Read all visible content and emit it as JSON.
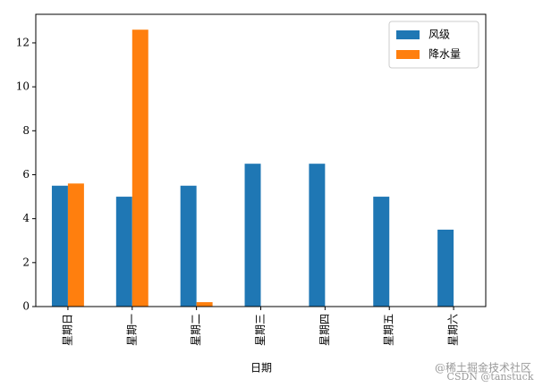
{
  "chart_data": {
    "type": "bar",
    "categories": [
      "星期日",
      "星期一",
      "星期二",
      "星期三",
      "星期四",
      "星期五",
      "星期六"
    ],
    "series": [
      {
        "name": "风级",
        "color": "#1f77b4",
        "values": [
          5.5,
          5,
          5.5,
          6.5,
          6.5,
          5,
          3.5
        ]
      },
      {
        "name": "降水量",
        "color": "#ff7f0e",
        "values": [
          5.6,
          12.6,
          0.2,
          0,
          0,
          0,
          0
        ]
      }
    ],
    "x_label": "日期",
    "ylim": [
      0,
      13.3
    ],
    "yticks": [
      0,
      2,
      4,
      6,
      8,
      10,
      12
    ],
    "legend": "upper right",
    "watermarks": [
      "@稀土掘金技术社区",
      "CSDN @tanstuck"
    ]
  }
}
